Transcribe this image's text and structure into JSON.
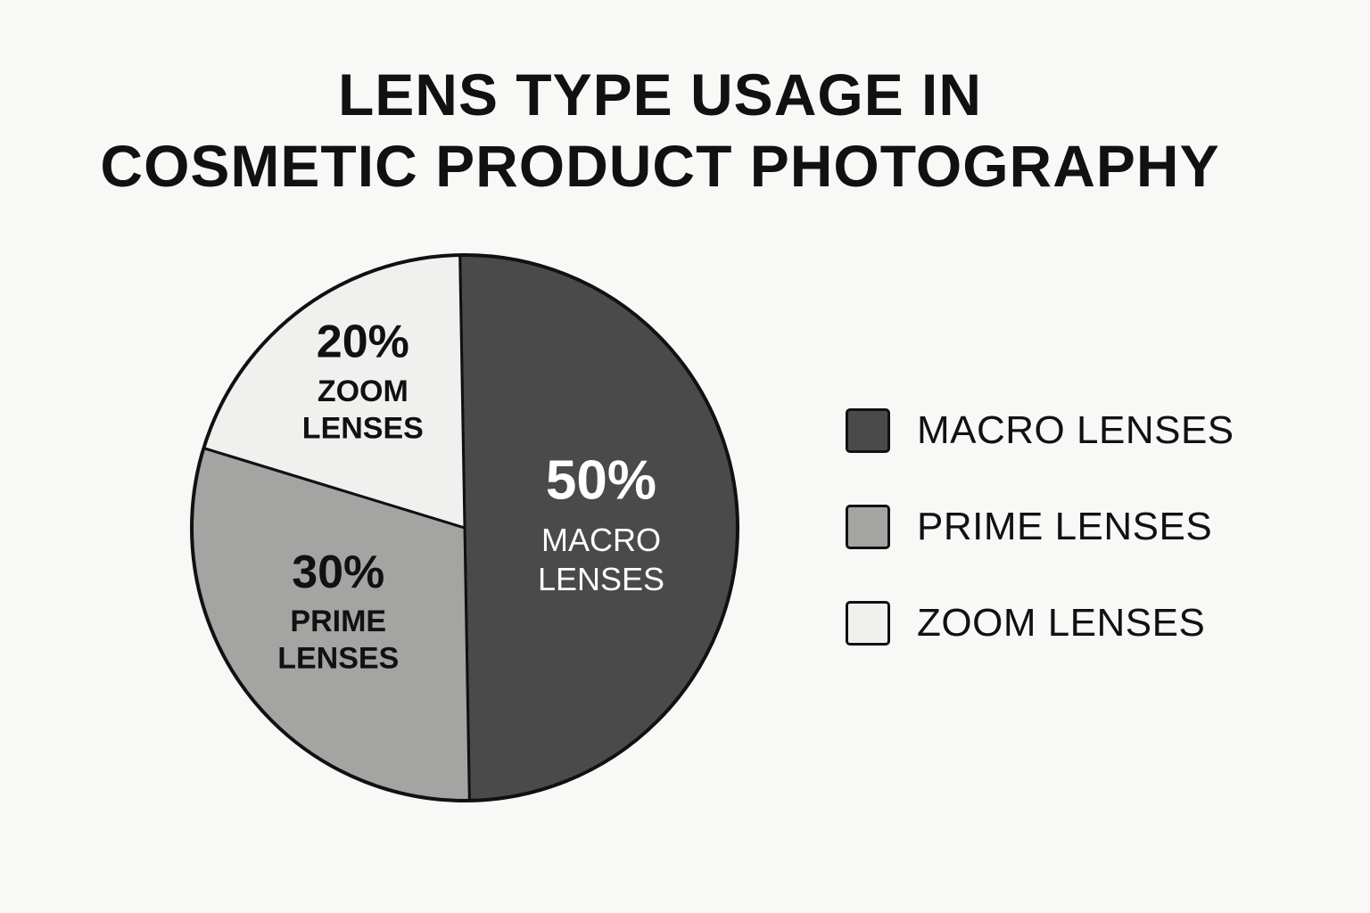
{
  "chart_data": {
    "type": "pie",
    "title_lines": [
      "LENS TYPE USAGE IN",
      "COSMETIC PRODUCT PHOTOGRAPHY"
    ],
    "slices": [
      {
        "key": "macro",
        "value": 50,
        "percent_label": "50%",
        "label_lines": [
          "MACRO",
          "LENSES"
        ],
        "color": "#4a4a4a",
        "text_color": "#ffffff"
      },
      {
        "key": "prime",
        "value": 30,
        "percent_label": "30%",
        "label_lines": [
          "PRIME",
          "LENSES"
        ],
        "color": "#a4a4a2",
        "text_color": "#111111"
      },
      {
        "key": "zoom",
        "value": 20,
        "percent_label": "20%",
        "label_lines": [
          "ZOOM",
          "LENSES"
        ],
        "color": "#f0f0ee",
        "text_color": "#111111"
      }
    ],
    "legend": [
      {
        "key": "macro",
        "label": "MACRO LENSES",
        "color": "#4a4a4a"
      },
      {
        "key": "prime",
        "label": "PRIME LENSES",
        "color": "#a4a4a2"
      },
      {
        "key": "zoom",
        "label": "ZOOM LENSES",
        "color": "#f0f0ee"
      }
    ],
    "legend_position": "right"
  }
}
